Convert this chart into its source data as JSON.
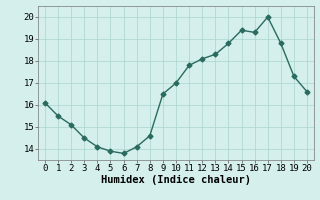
{
  "x": [
    0,
    1,
    2,
    3,
    4,
    5,
    6,
    7,
    8,
    9,
    10,
    11,
    12,
    13,
    14,
    15,
    16,
    17,
    18,
    19,
    20
  ],
  "y": [
    16.1,
    15.5,
    15.1,
    14.5,
    14.1,
    13.9,
    13.8,
    14.1,
    14.6,
    16.5,
    17.0,
    17.8,
    18.1,
    18.3,
    18.8,
    19.4,
    19.3,
    20.0,
    18.8,
    17.3,
    16.6
  ],
  "line_color": "#2a6b60",
  "marker": "D",
  "markersize": 2.5,
  "linewidth": 1.0,
  "bg_color": "#d4efec",
  "grid_color": "#aad4cf",
  "xlabel": "Humidex (Indice chaleur)",
  "xlabel_fontsize": 7.5,
  "tick_fontsize": 6.5,
  "ylim": [
    13.5,
    20.5
  ],
  "xlim": [
    -0.5,
    20.5
  ],
  "yticks": [
    14,
    15,
    16,
    17,
    18,
    19,
    20
  ],
  "xticks": [
    0,
    1,
    2,
    3,
    4,
    5,
    6,
    7,
    8,
    9,
    10,
    11,
    12,
    13,
    14,
    15,
    16,
    17,
    18,
    19,
    20
  ]
}
